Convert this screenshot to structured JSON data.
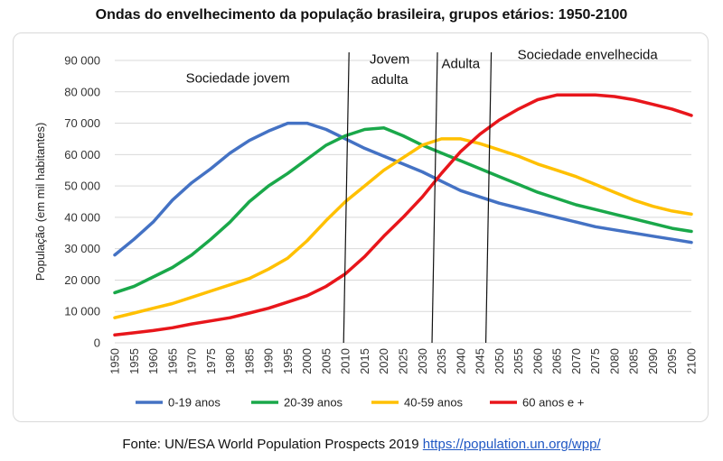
{
  "source": {
    "prefix": "Fonte: UN/ESA World Population Prospects 2019",
    "link": "https://population.un.org/wpp/"
  },
  "colors": {
    "s0": "#4472c4",
    "s1": "#1aa84a",
    "s2": "#ffc000",
    "s3": "#e8161b",
    "grid": "#d9d9d9"
  },
  "chart_data": {
    "type": "line",
    "title": "Ondas do envelhecimento da população brasileira, grupos etários: 1950-2100",
    "xlabel": "",
    "ylabel": "População (em mil habitantes)",
    "ylim": [
      0,
      90000
    ],
    "yticks": [
      0,
      10000,
      20000,
      30000,
      40000,
      50000,
      60000,
      70000,
      80000,
      90000
    ],
    "ytick_labels": [
      "0",
      "10 000",
      "20 000",
      "30 000",
      "40 000",
      "50 000",
      "60 000",
      "70 000",
      "80 000",
      "90 000"
    ],
    "x": [
      1950,
      1955,
      1960,
      1965,
      1970,
      1975,
      1980,
      1985,
      1990,
      1995,
      2000,
      2005,
      2010,
      2015,
      2020,
      2025,
      2030,
      2035,
      2040,
      2045,
      2050,
      2055,
      2060,
      2065,
      2070,
      2075,
      2080,
      2085,
      2090,
      2095,
      2100
    ],
    "grid": "horizontal",
    "legend_position": "bottom",
    "series": [
      {
        "name": "0-19 anos",
        "color_key": "s0",
        "values": [
          28000,
          33000,
          38500,
          45500,
          51000,
          55500,
          60500,
          64500,
          67500,
          70000,
          70000,
          68000,
          65000,
          62000,
          59500,
          57000,
          54500,
          51500,
          48500,
          46500,
          44500,
          43000,
          41500,
          40000,
          38500,
          37000,
          36000,
          35000,
          34000,
          33000,
          32000
        ]
      },
      {
        "name": "20-39 anos",
        "color_key": "s1",
        "values": [
          16000,
          18000,
          21000,
          24000,
          28000,
          33000,
          38500,
          45000,
          50000,
          54000,
          58500,
          63000,
          66000,
          68000,
          68500,
          66000,
          63000,
          60500,
          58000,
          55500,
          53000,
          50500,
          48000,
          46000,
          44000,
          42500,
          41000,
          39500,
          38000,
          36500,
          35500
        ]
      },
      {
        "name": "40-59 anos",
        "color_key": "s2",
        "values": [
          8000,
          9500,
          11000,
          12500,
          14500,
          16500,
          18500,
          20500,
          23500,
          27000,
          32500,
          39000,
          45000,
          50000,
          55000,
          59000,
          63000,
          65000,
          65000,
          63500,
          61500,
          59500,
          57000,
          55000,
          53000,
          50500,
          48000,
          45500,
          43500,
          42000,
          41000
        ]
      },
      {
        "name": "60 anos e +",
        "color_key": "s3",
        "values": [
          2500,
          3200,
          3900,
          4800,
          6000,
          7000,
          8000,
          9500,
          11000,
          13000,
          15000,
          18000,
          22000,
          27500,
          34000,
          40000,
          46500,
          54000,
          61000,
          66500,
          71000,
          74500,
          77500,
          79000,
          79000,
          79000,
          78500,
          77500,
          76000,
          74500,
          72500
        ]
      }
    ],
    "dividers": [
      2010,
      2033,
      2047
    ],
    "annotations": [
      {
        "text": "Sociedade jovem",
        "x": 1982,
        "y": 83000
      },
      {
        "text": "Jovem",
        "x": 2021.5,
        "y": 89000
      },
      {
        "text": "adulta",
        "x": 2021.5,
        "y": 82500
      },
      {
        "text": "Adulta",
        "x": 2040,
        "y": 87500
      },
      {
        "text": "Sociedade envelhecida",
        "x": 2073,
        "y": 90500
      }
    ]
  }
}
